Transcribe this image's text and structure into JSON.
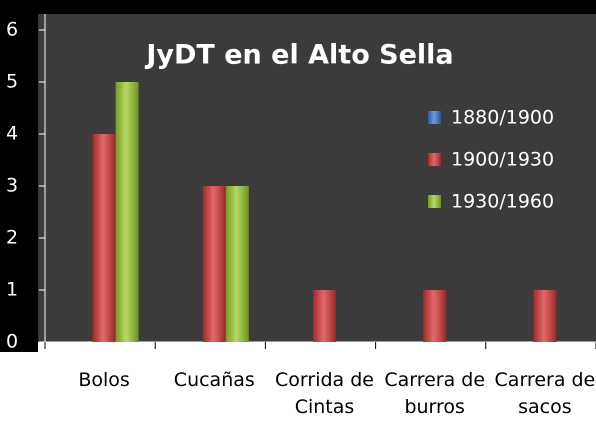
{
  "chart_data": {
    "type": "bar",
    "title": "JyDT en el Alto Sella",
    "categories": [
      "Bolos",
      "Cucañas",
      "Corrida de Cintas",
      "Carrera de burros",
      "Carrera de sacos"
    ],
    "series": [
      {
        "name": "1880/1900",
        "color": "#3a78d8",
        "values": [
          0,
          0,
          0,
          0,
          0
        ]
      },
      {
        "name": "1900/1930",
        "color": "#d93636",
        "values": [
          4,
          3,
          1,
          1,
          1
        ]
      },
      {
        "name": "1930/1960",
        "color": "#9ccc2e",
        "values": [
          5,
          3,
          null,
          null,
          null
        ]
      }
    ],
    "ylim": [
      0,
      6
    ],
    "yticks": [
      0,
      1,
      2,
      3,
      4,
      5,
      6
    ],
    "legend": "upper right"
  }
}
